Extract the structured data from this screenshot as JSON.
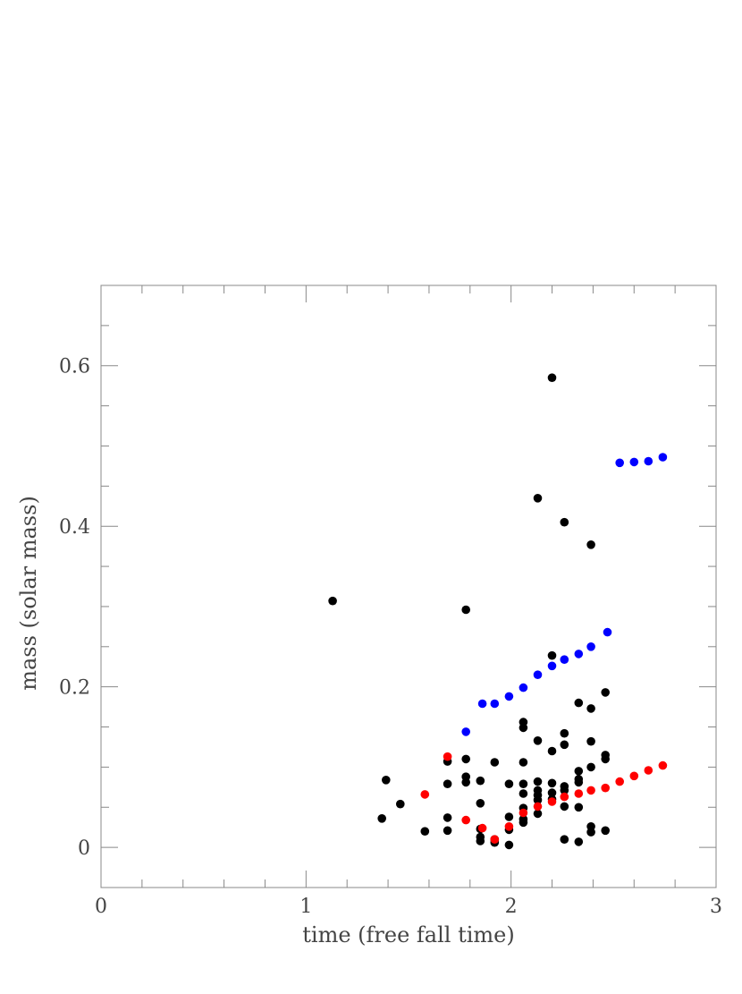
{
  "chart_data": {
    "type": "scatter",
    "title": "",
    "xlabel": "time (free fall time)",
    "ylabel": "mass (solar mass)",
    "xlim": [
      0,
      3
    ],
    "ylim": [
      -0.05,
      0.7
    ],
    "xticks": [
      0,
      1,
      2,
      3
    ],
    "xtick_labels": [
      "0",
      "1",
      "2",
      "3"
    ],
    "yticks": [
      0,
      0.2,
      0.4,
      0.6
    ],
    "ytick_labels": [
      "0",
      "0.2",
      "0.4",
      "0.6"
    ],
    "grid": false,
    "legend": "none",
    "series": [
      {
        "color": "#000000",
        "points": [
          [
            1.13,
            0.307
          ],
          [
            1.37,
            0.036
          ],
          [
            1.39,
            0.084
          ],
          [
            1.46,
            0.054
          ],
          [
            1.58,
            0.02
          ],
          [
            1.69,
            0.107
          ],
          [
            1.69,
            0.079
          ],
          [
            1.69,
            0.037
          ],
          [
            1.69,
            0.021
          ],
          [
            1.78,
            0.296
          ],
          [
            1.78,
            0.11
          ],
          [
            1.78,
            0.088
          ],
          [
            1.78,
            0.081
          ],
          [
            1.85,
            0.083
          ],
          [
            1.85,
            0.055
          ],
          [
            1.85,
            0.023
          ],
          [
            1.85,
            0.013
          ],
          [
            1.85,
            0.008
          ],
          [
            1.92,
            0.106
          ],
          [
            1.92,
            0.01
          ],
          [
            1.92,
            0.006
          ],
          [
            1.99,
            0.079
          ],
          [
            1.99,
            0.038
          ],
          [
            1.99,
            0.022
          ],
          [
            1.99,
            0.003
          ],
          [
            2.06,
            0.156
          ],
          [
            2.06,
            0.149
          ],
          [
            2.06,
            0.106
          ],
          [
            2.06,
            0.079
          ],
          [
            2.06,
            0.067
          ],
          [
            2.06,
            0.049
          ],
          [
            2.06,
            0.035
          ],
          [
            2.06,
            0.031
          ],
          [
            2.13,
            0.435
          ],
          [
            2.13,
            0.133
          ],
          [
            2.13,
            0.082
          ],
          [
            2.13,
            0.071
          ],
          [
            2.13,
            0.065
          ],
          [
            2.13,
            0.059
          ],
          [
            2.13,
            0.042
          ],
          [
            2.2,
            0.585
          ],
          [
            2.2,
            0.239
          ],
          [
            2.2,
            0.12
          ],
          [
            2.2,
            0.08
          ],
          [
            2.2,
            0.068
          ],
          [
            2.2,
            0.06
          ],
          [
            2.26,
            0.405
          ],
          [
            2.26,
            0.142
          ],
          [
            2.26,
            0.128
          ],
          [
            2.26,
            0.076
          ],
          [
            2.26,
            0.071
          ],
          [
            2.26,
            0.051
          ],
          [
            2.26,
            0.01
          ],
          [
            2.33,
            0.18
          ],
          [
            2.33,
            0.095
          ],
          [
            2.33,
            0.085
          ],
          [
            2.33,
            0.081
          ],
          [
            2.33,
            0.05
          ],
          [
            2.33,
            0.007
          ],
          [
            2.39,
            0.377
          ],
          [
            2.39,
            0.173
          ],
          [
            2.39,
            0.132
          ],
          [
            2.39,
            0.1
          ],
          [
            2.39,
            0.026
          ],
          [
            2.39,
            0.019
          ],
          [
            2.46,
            0.193
          ],
          [
            2.46,
            0.115
          ],
          [
            2.46,
            0.11
          ],
          [
            2.46,
            0.021
          ]
        ]
      },
      {
        "color": "#0000ff",
        "points": [
          [
            1.78,
            0.144
          ],
          [
            1.86,
            0.179
          ],
          [
            1.92,
            0.179
          ],
          [
            1.99,
            0.188
          ],
          [
            2.06,
            0.199
          ],
          [
            2.13,
            0.215
          ],
          [
            2.2,
            0.226
          ],
          [
            2.26,
            0.234
          ],
          [
            2.33,
            0.241
          ],
          [
            2.39,
            0.25
          ],
          [
            2.47,
            0.268
          ],
          [
            2.53,
            0.479
          ],
          [
            2.6,
            0.48
          ],
          [
            2.67,
            0.481
          ],
          [
            2.74,
            0.486
          ]
        ]
      },
      {
        "color": "#ff0000",
        "points": [
          [
            1.58,
            0.066
          ],
          [
            1.69,
            0.113
          ],
          [
            1.78,
            0.034
          ],
          [
            1.86,
            0.024
          ],
          [
            1.92,
            0.01
          ],
          [
            1.99,
            0.026
          ],
          [
            2.06,
            0.043
          ],
          [
            2.13,
            0.051
          ],
          [
            2.2,
            0.057
          ],
          [
            2.26,
            0.063
          ],
          [
            2.33,
            0.067
          ],
          [
            2.39,
            0.071
          ],
          [
            2.46,
            0.074
          ],
          [
            2.53,
            0.082
          ],
          [
            2.6,
            0.089
          ],
          [
            2.67,
            0.096
          ],
          [
            2.74,
            0.102
          ]
        ]
      }
    ]
  }
}
